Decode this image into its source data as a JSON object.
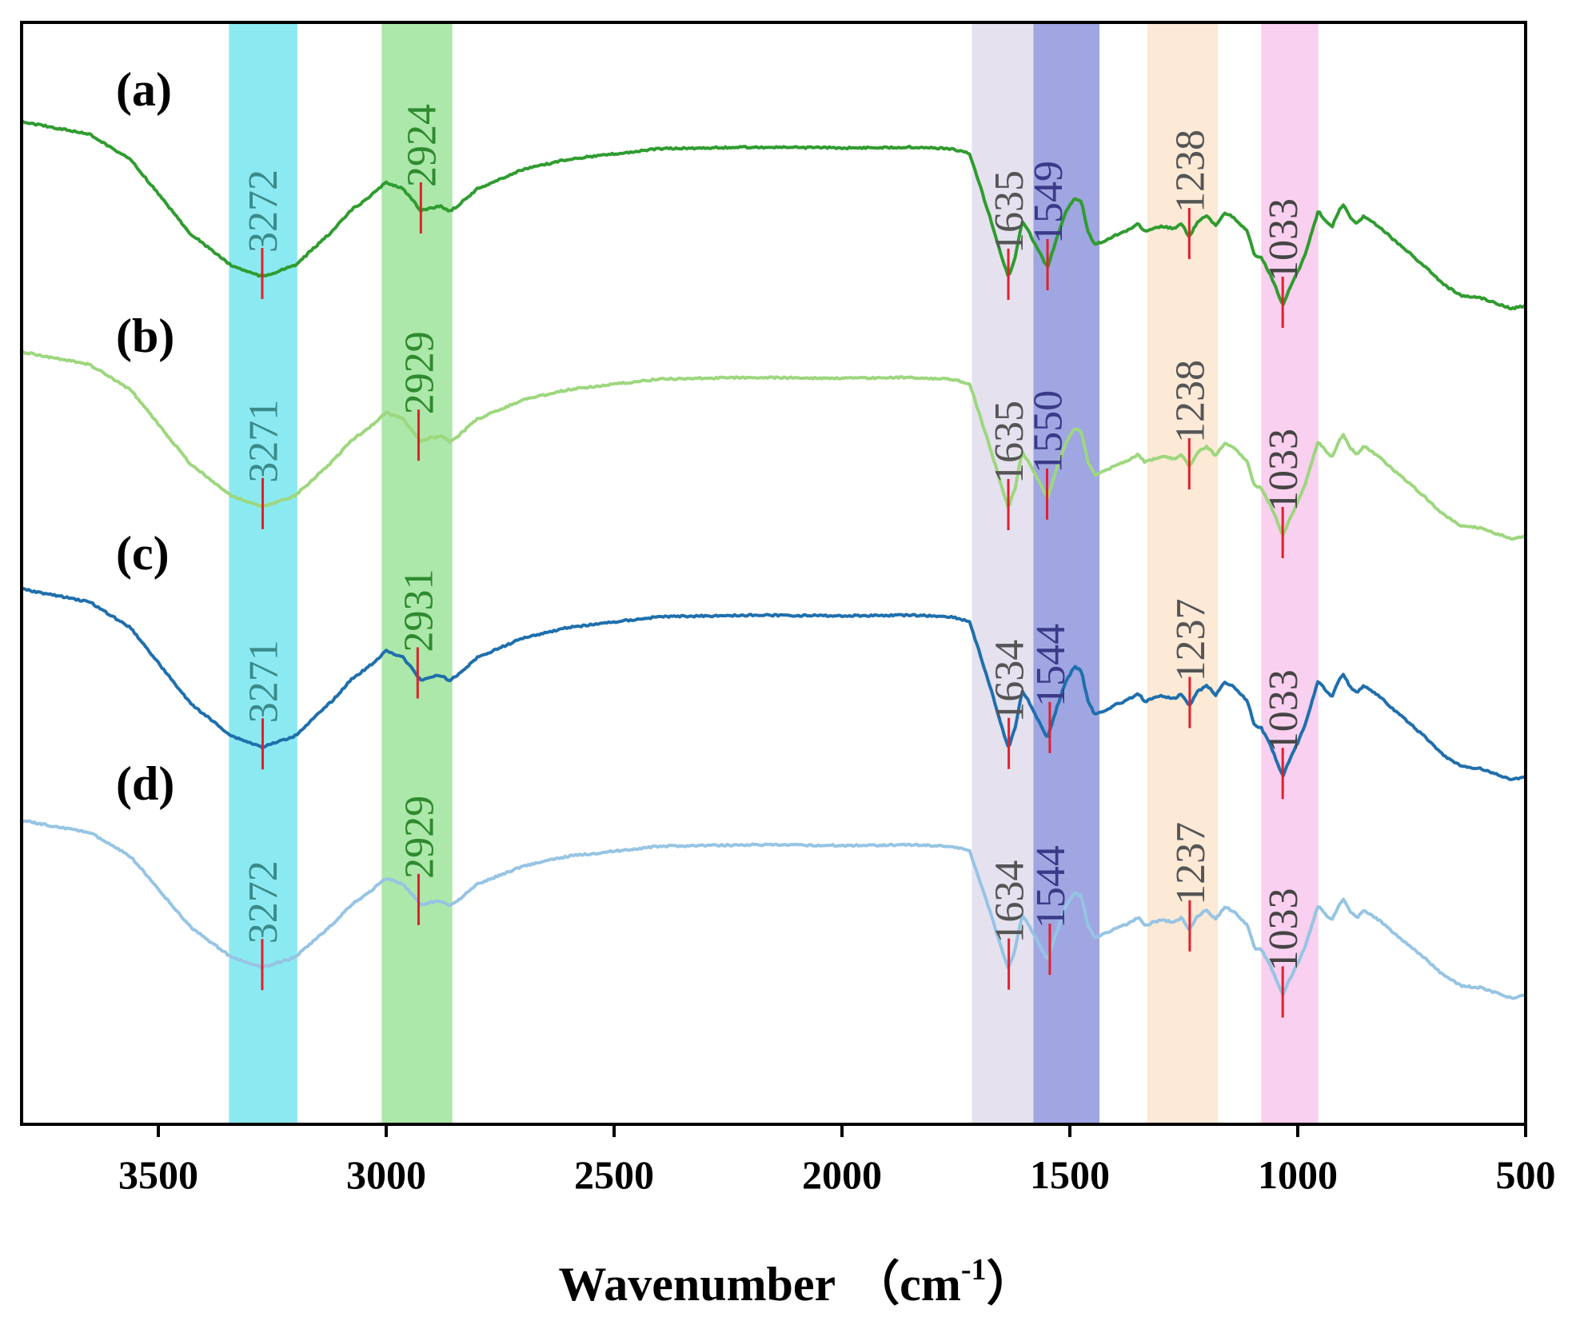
{
  "chart_data": {
    "type": "line",
    "title": "",
    "xlabel": "Wavenumber",
    "xlabel_unit_open": "（cm",
    "xlabel_unit_sup": "-1",
    "xlabel_unit_close": "）",
    "ylabel": "",
    "xlim": [
      3800,
      500
    ],
    "x_reversed": true,
    "x_ticks": [
      3500,
      3000,
      2500,
      2000,
      1500,
      1000,
      500
    ],
    "x_tick_labels": [
      "3500",
      "3000",
      "2500",
      "2000",
      "1500",
      "1000",
      "500"
    ],
    "grid": false,
    "legend": "none",
    "highlight_bands": [
      {
        "from": 3345,
        "to": 3195,
        "color": "#77e6ee"
      },
      {
        "from": 3010,
        "to": 2855,
        "color": "#9ee49a"
      },
      {
        "from": 1715,
        "to": 1580,
        "color": "#e2dcec"
      },
      {
        "from": 1580,
        "to": 1435,
        "color": "#8f96dc"
      },
      {
        "from": 1330,
        "to": 1175,
        "color": "#fbe5cf"
      },
      {
        "from": 1080,
        "to": 955,
        "color": "#f8c8ec"
      }
    ],
    "series": [
      {
        "name": "(a)",
        "color": "#2f9c2f",
        "peak_label_color": "#444444",
        "peaks": [
          {
            "x": 3272,
            "label": "3272",
            "color": "#3a8a8a"
          },
          {
            "x": 2924,
            "label": "2924",
            "color": "#2f8a2f"
          },
          {
            "x": 1635,
            "label": "1635",
            "color": "#555555"
          },
          {
            "x": 1549,
            "label": "1549",
            "color": "#3a3a88"
          },
          {
            "x": 1238,
            "label": "1238",
            "color": "#555555"
          },
          {
            "x": 1033,
            "label": "1033",
            "color": "#444444"
          }
        ]
      },
      {
        "name": "(b)",
        "color": "#9dd77e",
        "peaks": [
          {
            "x": 3271,
            "label": "3271",
            "color": "#3a8a8a"
          },
          {
            "x": 2929,
            "label": "2929",
            "color": "#2f8a2f"
          },
          {
            "x": 1635,
            "label": "1635",
            "color": "#555555"
          },
          {
            "x": 1550,
            "label": "1550",
            "color": "#3a3a88"
          },
          {
            "x": 1238,
            "label": "1238",
            "color": "#555555"
          },
          {
            "x": 1033,
            "label": "1033",
            "color": "#444444"
          }
        ]
      },
      {
        "name": "(c)",
        "color": "#1f6fad",
        "peaks": [
          {
            "x": 3271,
            "label": "3271",
            "color": "#3a8a8a"
          },
          {
            "x": 2931,
            "label": "2931",
            "color": "#2f8a2f"
          },
          {
            "x": 1634,
            "label": "1634",
            "color": "#555555"
          },
          {
            "x": 1544,
            "label": "1544",
            "color": "#3a3a88"
          },
          {
            "x": 1237,
            "label": "1237",
            "color": "#555555"
          },
          {
            "x": 1033,
            "label": "1033",
            "color": "#444444"
          }
        ]
      },
      {
        "name": "(d)",
        "color": "#96c4e4",
        "peaks": [
          {
            "x": 3272,
            "label": "3272",
            "color": "#3a8a8a"
          },
          {
            "x": 2929,
            "label": "2929",
            "color": "#2f8a2f"
          },
          {
            "x": 1634,
            "label": "1634",
            "color": "#555555"
          },
          {
            "x": 1544,
            "label": "1544",
            "color": "#3a3a88"
          },
          {
            "x": 1237,
            "label": "1237",
            "color": "#555555"
          },
          {
            "x": 1033,
            "label": "1033",
            "color": "#444444"
          }
        ]
      }
    ]
  }
}
